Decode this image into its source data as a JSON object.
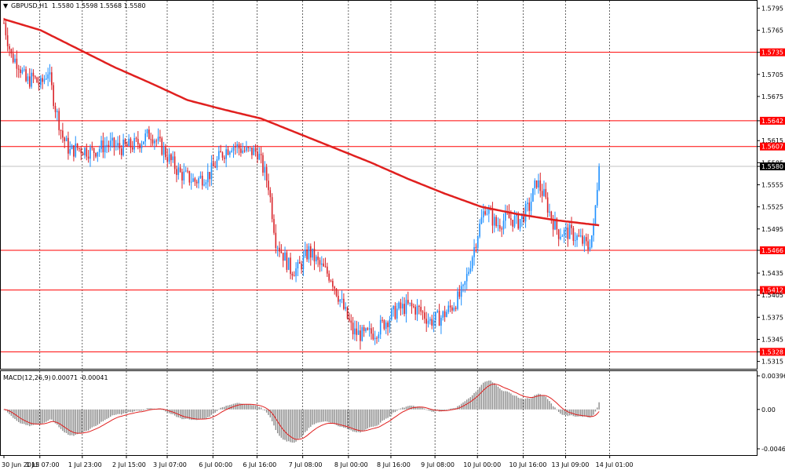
{
  "header": {
    "symbol": "GBPUSD,H1",
    "ohlc": "1.5580 1.5598 1.5568 1.5580"
  },
  "macd": {
    "label": "MACD(12,26,9)",
    "values": "0.00071 -0.00041"
  },
  "colors": {
    "bull": "#1e90ff",
    "bear": "#d9242a",
    "ma": "#e0201f",
    "level": "#ff0000",
    "macd_hist": "#8c8c8c",
    "signal": "#e0201f",
    "grid": "#000000"
  },
  "chart_data": [
    {
      "type": "candlestick",
      "symbol": "GBPUSD",
      "timeframe": "H1",
      "y_ticks": [
        "1.5795",
        "1.5765",
        "1.5735",
        "1.5705",
        "1.5675",
        "1.5642",
        "1.5615",
        "1.5607",
        "1.5585",
        "1.5580",
        "1.5555",
        "1.5525",
        "1.5495",
        "1.5466",
        "1.5435",
        "1.5412",
        "1.5405",
        "1.5375",
        "1.5345",
        "1.5328",
        "1.5315"
      ],
      "ylim": [
        1.5305,
        1.5805
      ],
      "x_ticks": [
        "30 Jun 2015",
        "1 Jul 07:00",
        "1 Jul 23:00",
        "2 Jul 15:00",
        "3 Jul 07:00",
        "6 Jul 00:00",
        "6 Jul 16:00",
        "7 Jul 08:00",
        "8 Jul 00:00",
        "8 Jul 16:00",
        "9 Jul 08:00",
        "10 Jul 00:00",
        "10 Jul 16:00",
        "13 Jul 09:00",
        "14 Jul 01:00"
      ],
      "horizontal_levels": [
        1.5735,
        1.5642,
        1.5607,
        1.5466,
        1.5412,
        1.5328
      ],
      "current_price": 1.558,
      "anchors": [
        [
          0,
          1.5775
        ],
        [
          4,
          1.573
        ],
        [
          8,
          1.572
        ],
        [
          12,
          1.5695
        ],
        [
          16,
          1.57
        ],
        [
          20,
          1.569
        ],
        [
          24,
          1.571
        ],
        [
          28,
          1.566
        ],
        [
          32,
          1.562
        ],
        [
          36,
          1.56
        ],
        [
          40,
          1.5605
        ],
        [
          48,
          1.56
        ],
        [
          56,
          1.561
        ],
        [
          64,
          1.5605
        ],
        [
          72,
          1.561
        ],
        [
          80,
          1.5625
        ],
        [
          86,
          1.5605
        ],
        [
          90,
          1.559
        ],
        [
          96,
          1.557
        ],
        [
          104,
          1.556
        ],
        [
          112,
          1.557
        ],
        [
          118,
          1.5595
        ],
        [
          124,
          1.561
        ],
        [
          132,
          1.56
        ],
        [
          138,
          1.56
        ],
        [
          144,
          1.5555
        ],
        [
          148,
          1.548
        ],
        [
          152,
          1.546
        ],
        [
          156,
          1.544
        ],
        [
          160,
          1.544
        ],
        [
          166,
          1.5465
        ],
        [
          172,
          1.5445
        ],
        [
          178,
          1.543
        ],
        [
          182,
          1.5405
        ],
        [
          186,
          1.538
        ],
        [
          190,
          1.5355
        ],
        [
          196,
          1.535
        ],
        [
          202,
          1.5355
        ],
        [
          208,
          1.537
        ],
        [
          214,
          1.5385
        ],
        [
          220,
          1.539
        ],
        [
          226,
          1.5385
        ],
        [
          232,
          1.537
        ],
        [
          238,
          1.5375
        ],
        [
          244,
          1.539
        ],
        [
          250,
          1.541
        ],
        [
          254,
          1.545
        ],
        [
          258,
          1.549
        ],
        [
          262,
          1.5525
        ],
        [
          268,
          1.55
        ],
        [
          274,
          1.551
        ],
        [
          280,
          1.5505
        ],
        [
          286,
          1.5525
        ],
        [
          290,
          1.556
        ],
        [
          294,
          1.554
        ],
        [
          298,
          1.551
        ],
        [
          302,
          1.549
        ],
        [
          308,
          1.549
        ],
        [
          314,
          1.548
        ],
        [
          318,
          1.547
        ],
        [
          321,
          1.5495
        ],
        [
          324,
          1.5585
        ]
      ],
      "ma_curve": [
        [
          0,
          1.578
        ],
        [
          20,
          1.5765
        ],
        [
          40,
          1.574
        ],
        [
          60,
          1.5715
        ],
        [
          80,
          1.5693
        ],
        [
          100,
          1.567
        ],
        [
          120,
          1.5657
        ],
        [
          140,
          1.5645
        ],
        [
          160,
          1.5625
        ],
        [
          180,
          1.5605
        ],
        [
          200,
          1.5585
        ],
        [
          220,
          1.5563
        ],
        [
          240,
          1.5543
        ],
        [
          260,
          1.5525
        ],
        [
          280,
          1.5515
        ],
        [
          300,
          1.5507
        ],
        [
          324,
          1.55
        ]
      ]
    },
    {
      "type": "bar",
      "name": "MACD(12,26,9)",
      "y_ticks": [
        "0.00396",
        "0.00",
        "-0.00464"
      ],
      "ylim": [
        -0.00464,
        0.00396
      ],
      "main_value": 0.00071,
      "signal_value": -0.00041
    }
  ]
}
